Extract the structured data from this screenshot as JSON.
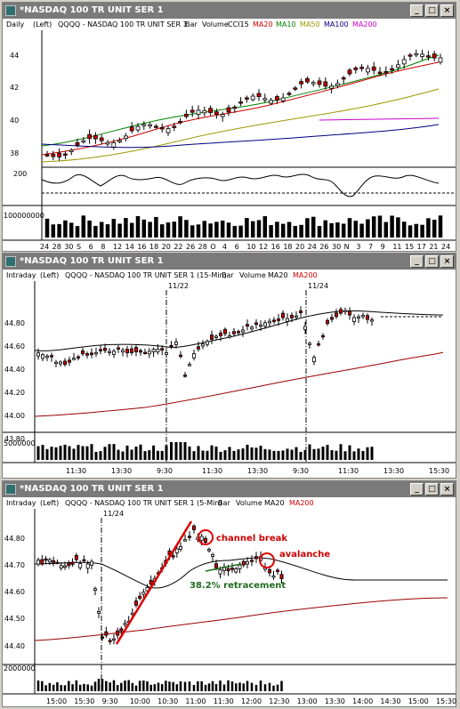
{
  "windows": [
    {
      "title": "*NASDAQ 100 TR UNIT SER 1",
      "timeframe": "Daily",
      "side": "(Left)",
      "symbol_desc": "QQQQ - NASDAQ 100 TR UNIT SER 1",
      "chart_kind": "Bar",
      "volume_label": "Volume",
      "indicators": [
        {
          "label": "CCI15",
          "color": "#000000"
        },
        {
          "label": "MA20",
          "color": "#cc0000"
        },
        {
          "label": "MA10",
          "color": "#008000"
        },
        {
          "label": "MA50",
          "color": "#999900"
        },
        {
          "label": "MA100",
          "color": "#000080"
        },
        {
          "label": "MA200",
          "color": "#cc00cc"
        }
      ],
      "y_ticks": [
        "44",
        "42",
        "40",
        "38"
      ],
      "cci_tick": "200",
      "volume_tick": "100000000",
      "x_ticks": [
        "24",
        "28",
        "30",
        "S",
        "6",
        "8",
        "12",
        "14",
        "16",
        "18",
        "20",
        "22",
        "26",
        "28",
        "O",
        "4",
        "6",
        "10",
        "12",
        "16",
        "18",
        "20",
        "24",
        "26",
        "30",
        "N",
        "3",
        "7",
        "9",
        "11",
        "15",
        "17",
        "21",
        "24"
      ]
    },
    {
      "title": "*NASDAQ 100 TR UNIT SER 1",
      "timeframe": "Intraday",
      "side": "(Left)",
      "symbol_desc": "QQQQ - NASDAQ 100 TR UNIT SER 1 (15-Min)",
      "chart_kind": "Bar",
      "volume_label": "Volume",
      "indicators": [
        {
          "label": "MA20",
          "color": "#000000"
        },
        {
          "label": "MA200",
          "color": "#cc0000"
        }
      ],
      "y_ticks": [
        "44.80",
        "44.60",
        "44.40",
        "44.20",
        "44.00",
        "43.80"
      ],
      "volume_tick": "5000000",
      "date_markers": [
        "11/22",
        "11/24"
      ],
      "x_ticks": [
        "11:30",
        "13:30",
        "9:30",
        "11:30",
        "13:30",
        "9:30",
        "11:30",
        "13:30",
        "15:30"
      ]
    },
    {
      "title": "*NASDAQ 100 TR UNIT SER 1",
      "timeframe": "Intraday",
      "side": "(Left)",
      "symbol_desc": "QQQQ - NASDAQ 100 TR UNIT SER 1 (5-Min)",
      "chart_kind": "Bar",
      "volume_label": "Volume",
      "indicators": [
        {
          "label": "MA20",
          "color": "#000000"
        },
        {
          "label": "MA200",
          "color": "#cc0000"
        }
      ],
      "y_ticks": [
        "44.80",
        "44.70",
        "44.60",
        "44.50",
        "44.40"
      ],
      "volume_tick": "2000000",
      "date_markers": [
        "11/24"
      ],
      "annotations": {
        "channel_break": "channel break",
        "avalanche": "avalanche",
        "retracement": "38.2% retracement"
      },
      "x_ticks": [
        "15:00",
        "15:30",
        "9:30",
        "10:00",
        "10:30",
        "11:00",
        "11:30",
        "12:00",
        "12:30",
        "13:00",
        "13:30",
        "14:00",
        "14:30",
        "15:00",
        "15:30"
      ]
    }
  ],
  "controls": {
    "minimize": "_",
    "maximize": "□",
    "close": "×"
  }
}
